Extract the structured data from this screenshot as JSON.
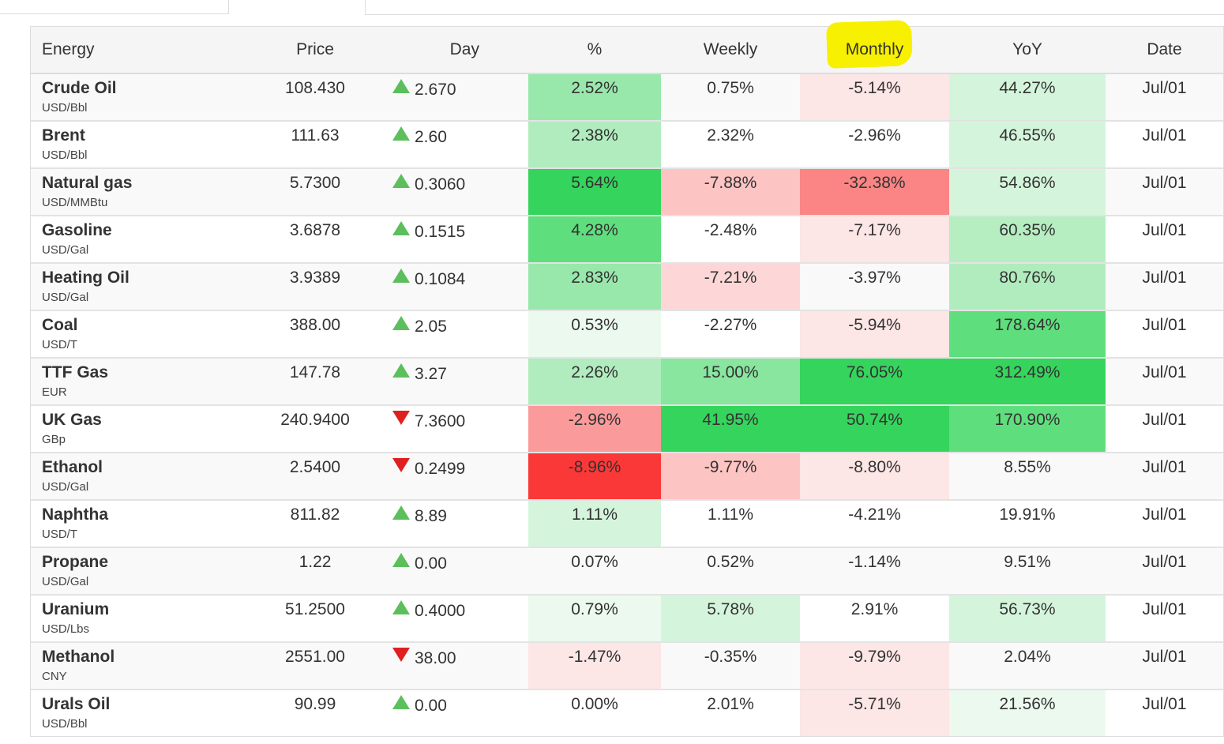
{
  "header": {
    "name": "Energy",
    "price": "Price",
    "day": "Day",
    "pct": "%",
    "weekly": "Weekly",
    "monthly": "Monthly",
    "yoy": "YoY",
    "date": "Date"
  },
  "colors": {
    "up_arrow": "#5cbf5c",
    "down_arrow": "#e02020",
    "highlight": "#f7f000"
  },
  "rows": [
    {
      "name": "Crude Oil",
      "unit": "USD/Bbl",
      "price": "108.430",
      "dir": "up",
      "day": "2.670",
      "pct": "2.52%",
      "weekly": "0.75%",
      "monthly": "-5.14%",
      "yoy": "44.27%",
      "date": "Jul/01",
      "bg": {
        "pct": "#99e8ab",
        "weekly": "",
        "monthly": "#fde6e6",
        "yoy": "#d4f5dc"
      }
    },
    {
      "name": "Brent",
      "unit": "USD/Bbl",
      "price": "111.63",
      "dir": "up",
      "day": "2.60",
      "pct": "2.38%",
      "weekly": "2.32%",
      "monthly": "-2.96%",
      "yoy": "46.55%",
      "date": "Jul/01",
      "bg": {
        "pct": "#b1ecbe",
        "weekly": "",
        "monthly": "",
        "yoy": "#d4f5dc"
      }
    },
    {
      "name": "Natural gas",
      "unit": "USD/MMBtu",
      "price": "5.7300",
      "dir": "up",
      "day": "0.3060",
      "pct": "5.64%",
      "weekly": "-7.88%",
      "monthly": "-32.38%",
      "yoy": "54.86%",
      "date": "Jul/01",
      "bg": {
        "pct": "#35d45c",
        "weekly": "#fdc4c4",
        "monthly": "#fb8585",
        "yoy": "#d4f5dc"
      }
    },
    {
      "name": "Gasoline",
      "unit": "USD/Gal",
      "price": "3.6878",
      "dir": "up",
      "day": "0.1515",
      "pct": "4.28%",
      "weekly": "-2.48%",
      "monthly": "-7.17%",
      "yoy": "60.35%",
      "date": "Jul/01",
      "bg": {
        "pct": "#5fde7d",
        "weekly": "",
        "monthly": "#fde6e6",
        "yoy": "#b6eec2"
      }
    },
    {
      "name": "Heating Oil",
      "unit": "USD/Gal",
      "price": "3.9389",
      "dir": "up",
      "day": "0.1084",
      "pct": "2.83%",
      "weekly": "-7.21%",
      "monthly": "-3.97%",
      "yoy": "80.76%",
      "date": "Jul/01",
      "bg": {
        "pct": "#99e8ab",
        "weekly": "#fdd7d7",
        "monthly": "",
        "yoy": "#b1ecbe"
      }
    },
    {
      "name": "Coal",
      "unit": "USD/T",
      "price": "388.00",
      "dir": "up",
      "day": "2.05",
      "pct": "0.53%",
      "weekly": "-2.27%",
      "monthly": "-5.94%",
      "yoy": "178.64%",
      "date": "Jul/01",
      "bg": {
        "pct": "#ebf9ee",
        "weekly": "",
        "monthly": "#fde6e6",
        "yoy": "#5fde7d"
      }
    },
    {
      "name": "TTF Gas",
      "unit": "EUR",
      "price": "147.78",
      "dir": "up",
      "day": "3.27",
      "pct": "2.26%",
      "weekly": "15.00%",
      "monthly": "76.05%",
      "yoy": "312.49%",
      "date": "Jul/01",
      "bg": {
        "pct": "#b1ecbe",
        "weekly": "#88e69e",
        "monthly": "#35d45c",
        "yoy": "#35d45c"
      }
    },
    {
      "name": "UK Gas",
      "unit": "GBp",
      "price": "240.9400",
      "dir": "down",
      "day": "7.3600",
      "pct": "-2.96%",
      "weekly": "41.95%",
      "monthly": "50.74%",
      "yoy": "170.90%",
      "date": "Jul/01",
      "bg": {
        "pct": "#fb9a9a",
        "weekly": "#35d45c",
        "monthly": "#35d45c",
        "yoy": "#5fde7d"
      }
    },
    {
      "name": "Ethanol",
      "unit": "USD/Gal",
      "price": "2.5400",
      "dir": "down",
      "day": "0.2499",
      "pct": "-8.96%",
      "weekly": "-9.77%",
      "monthly": "-8.80%",
      "yoy": "8.55%",
      "date": "Jul/01",
      "bg": {
        "pct": "#fb3838",
        "weekly": "#fdc4c4",
        "monthly": "#fde6e6",
        "yoy": ""
      }
    },
    {
      "name": "Naphtha",
      "unit": "USD/T",
      "price": "811.82",
      "dir": "up",
      "day": "8.89",
      "pct": "1.11%",
      "weekly": "1.11%",
      "monthly": "-4.21%",
      "yoy": "19.91%",
      "date": "Jul/01",
      "bg": {
        "pct": "#d4f5dc",
        "weekly": "",
        "monthly": "",
        "yoy": ""
      }
    },
    {
      "name": "Propane",
      "unit": "USD/Gal",
      "price": "1.22",
      "dir": "up",
      "day": "0.00",
      "pct": "0.07%",
      "weekly": "0.52%",
      "monthly": "-1.14%",
      "yoy": "9.51%",
      "date": "Jul/01",
      "bg": {
        "pct": "",
        "weekly": "",
        "monthly": "",
        "yoy": ""
      }
    },
    {
      "name": "Uranium",
      "unit": "USD/Lbs",
      "price": "51.2500",
      "dir": "up",
      "day": "0.4000",
      "pct": "0.79%",
      "weekly": "5.78%",
      "monthly": "2.91%",
      "yoy": "56.73%",
      "date": "Jul/01",
      "bg": {
        "pct": "#ebf9ee",
        "weekly": "#d4f5dc",
        "monthly": "",
        "yoy": "#d4f5dc"
      }
    },
    {
      "name": "Methanol",
      "unit": "CNY",
      "price": "2551.00",
      "dir": "down",
      "day": "38.00",
      "pct": "-1.47%",
      "weekly": "-0.35%",
      "monthly": "-9.79%",
      "yoy": "2.04%",
      "date": "Jul/01",
      "bg": {
        "pct": "#fde6e6",
        "weekly": "",
        "monthly": "#fde6e6",
        "yoy": ""
      }
    },
    {
      "name": "Urals Oil",
      "unit": "USD/Bbl",
      "price": "90.99",
      "dir": "up",
      "day": "0.00",
      "pct": "0.00%",
      "weekly": "2.01%",
      "monthly": "-5.71%",
      "yoy": "21.56%",
      "date": "Jul/01",
      "bg": {
        "pct": "",
        "weekly": "",
        "monthly": "#fde6e6",
        "yoy": "#ebf9ee"
      }
    }
  ]
}
